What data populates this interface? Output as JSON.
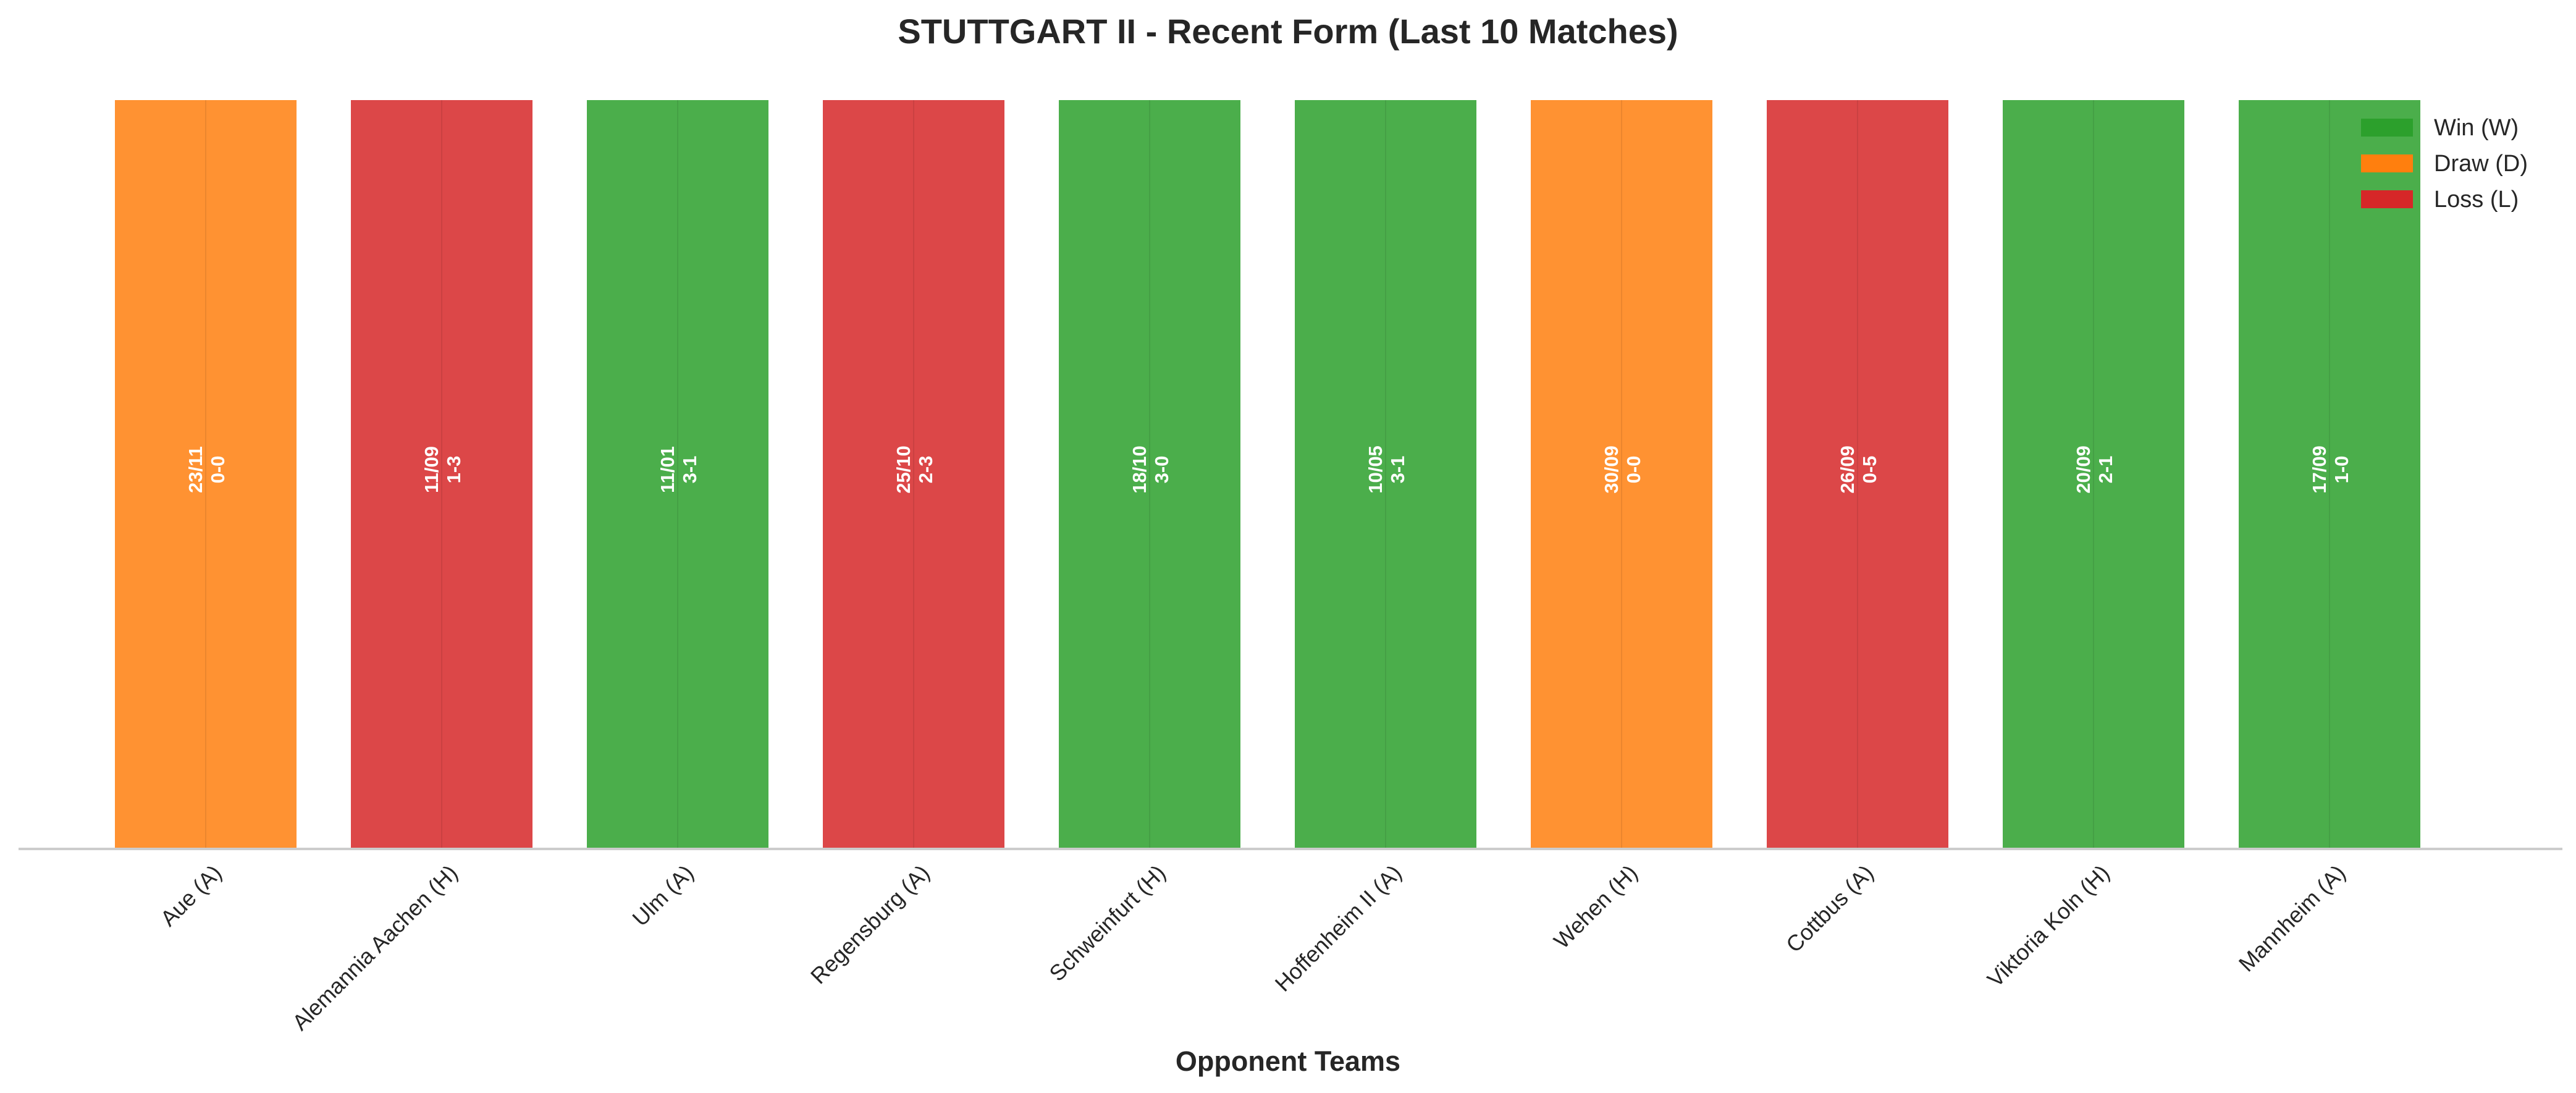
{
  "chart_data": {
    "type": "bar",
    "title": "STUTTGART II - Recent Form (Last 10 Matches)",
    "xlabel": "Opponent Teams",
    "ylabel": "",
    "grid": false,
    "legend_position": "top-right",
    "colors": {
      "W": "#2ca02c",
      "D": "#ff7f0e",
      "L": "#d62728"
    },
    "legend": [
      {
        "key": "W",
        "label": "Win (W)"
      },
      {
        "key": "D",
        "label": "Draw (D)"
      },
      {
        "key": "L",
        "label": "Loss (L)"
      }
    ],
    "categories": [
      "Aue (A)",
      "Alemannia Aachen (H)",
      "Ulm (A)",
      "Regensburg (A)",
      "Schweinfurt (H)",
      "Hoffenheim II (A)",
      "Wehen (H)",
      "Cottbus (A)",
      "Viktoria Koln (H)",
      "Mannheim (A)"
    ],
    "values": [
      1,
      1,
      1,
      1,
      1,
      1,
      1,
      1,
      1,
      1
    ],
    "results": [
      "D",
      "L",
      "W",
      "L",
      "W",
      "W",
      "D",
      "L",
      "W",
      "W"
    ],
    "dates": [
      "23/11",
      "11/09",
      "11/01",
      "25/10",
      "18/10",
      "10/05",
      "30/09",
      "26/09",
      "20/09",
      "17/09"
    ],
    "scores": [
      "0-0",
      "1-3",
      "3-1",
      "2-3",
      "3-0",
      "3-1",
      "0-0",
      "0-5",
      "2-1",
      "1-0"
    ]
  }
}
